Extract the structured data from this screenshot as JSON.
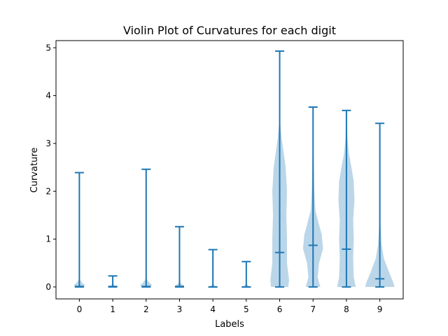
{
  "chart_data": {
    "type": "violin",
    "title": "Violin Plot of Curvatures for each digit",
    "xlabel": "Labels",
    "ylabel": "Curvature",
    "categories": [
      "0",
      "1",
      "2",
      "3",
      "4",
      "5",
      "6",
      "7",
      "8",
      "9"
    ],
    "yticks": [
      "0",
      "1",
      "2",
      "3",
      "4",
      "5"
    ],
    "ylim": [
      -0.25,
      5.15
    ],
    "grid": false,
    "series": [
      {
        "min": [
          0.0,
          0.0,
          0.0,
          0.0,
          0.0,
          0.0,
          0.0,
          0.0,
          0.0,
          0.0
        ],
        "max": [
          2.39,
          0.23,
          2.46,
          1.26,
          0.78,
          0.53,
          4.93,
          3.76,
          3.69,
          3.42
        ],
        "median": [
          0.01,
          0.01,
          0.01,
          0.01,
          0.0,
          0.0,
          0.72,
          0.87,
          0.79,
          0.17
        ]
      }
    ],
    "violin_width_profiles": [
      [
        [
          0.0,
          0.12
        ],
        [
          0.04,
          0.17
        ],
        [
          0.08,
          0.09
        ],
        [
          0.15,
          0.02
        ],
        [
          0.3,
          0.0
        ]
      ],
      [
        [
          0.0,
          0.12
        ],
        [
          0.03,
          0.04
        ],
        [
          0.1,
          0.0
        ]
      ],
      [
        [
          0.0,
          0.12
        ],
        [
          0.04,
          0.18
        ],
        [
          0.09,
          0.09
        ],
        [
          0.16,
          0.02
        ],
        [
          0.3,
          0.0
        ]
      ],
      [
        [
          0.0,
          0.12
        ],
        [
          0.03,
          0.13
        ],
        [
          0.07,
          0.04
        ],
        [
          0.15,
          0.0
        ]
      ],
      [
        [
          0.0,
          0.12
        ],
        [
          0.03,
          0.05
        ],
        [
          0.08,
          0.0
        ]
      ],
      [
        [
          0.0,
          0.12
        ],
        [
          0.03,
          0.05
        ],
        [
          0.08,
          0.0
        ]
      ],
      [
        [
          0.0,
          0.26
        ],
        [
          0.15,
          0.28
        ],
        [
          0.5,
          0.22
        ],
        [
          1.0,
          0.22
        ],
        [
          1.5,
          0.2
        ],
        [
          2.0,
          0.22
        ],
        [
          2.5,
          0.18
        ],
        [
          2.8,
          0.12
        ],
        [
          3.1,
          0.06
        ],
        [
          3.4,
          0.02
        ],
        [
          4.0,
          0.005
        ],
        [
          4.93,
          0.0
        ]
      ],
      [
        [
          0.0,
          0.22
        ],
        [
          0.2,
          0.14
        ],
        [
          0.5,
          0.18
        ],
        [
          0.8,
          0.3
        ],
        [
          1.1,
          0.26
        ],
        [
          1.3,
          0.18
        ],
        [
          1.6,
          0.07
        ],
        [
          2.0,
          0.04
        ],
        [
          3.0,
          0.01
        ],
        [
          3.76,
          0.0
        ]
      ],
      [
        [
          0.0,
          0.28
        ],
        [
          0.2,
          0.22
        ],
        [
          0.6,
          0.2
        ],
        [
          1.0,
          0.22
        ],
        [
          1.4,
          0.2
        ],
        [
          1.8,
          0.24
        ],
        [
          2.2,
          0.22
        ],
        [
          2.5,
          0.15
        ],
        [
          2.8,
          0.07
        ],
        [
          3.1,
          0.03
        ],
        [
          3.69,
          0.0
        ]
      ],
      [
        [
          0.0,
          0.44
        ],
        [
          0.1,
          0.4
        ],
        [
          0.3,
          0.28
        ],
        [
          0.6,
          0.12
        ],
        [
          0.9,
          0.05
        ],
        [
          1.3,
          0.02
        ],
        [
          2.0,
          0.01
        ],
        [
          3.42,
          0.0
        ]
      ]
    ],
    "colors": {
      "line": "#1f77b4",
      "fill": "#1f77b4"
    }
  }
}
